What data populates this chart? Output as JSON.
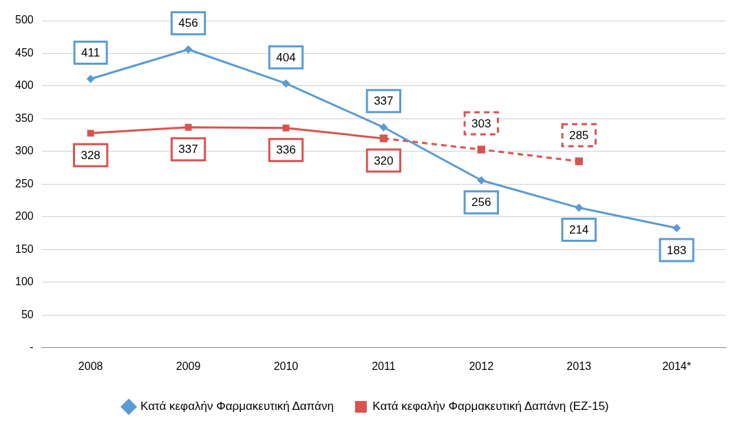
{
  "chart_data": {
    "type": "line",
    "categories": [
      "2008",
      "2009",
      "2010",
      "2011",
      "2012",
      "2013",
      "2014*"
    ],
    "series": [
      {
        "name": "Κατά κεφαλήν Φαρμακευτική Δαπάνη",
        "color": "#5b9bd5",
        "marker": "diamond",
        "values": [
          411,
          456,
          404,
          337,
          256,
          214,
          183
        ],
        "value_labels": [
          "411",
          "456",
          "404",
          "337",
          "256",
          "214",
          "183"
        ]
      },
      {
        "name": "Κατά κεφαλήν Φαρμακευτική Δαπάνη (ΕΖ-15)",
        "color": "#d9534f",
        "marker": "square",
        "values": [
          328,
          337,
          336,
          320,
          null,
          null,
          null
        ],
        "value_labels": [
          "328",
          "337",
          "336",
          "320",
          null,
          null,
          null
        ]
      },
      {
        "color": "#d9534f",
        "marker": "square",
        "line_style": "dashed",
        "values": [
          null,
          null,
          null,
          320,
          303,
          285,
          null
        ],
        "value_labels": [
          null,
          null,
          null,
          null,
          "303",
          "285",
          null
        ]
      }
    ],
    "ylim": [
      0,
      500
    ],
    "yticks": [
      {
        "value": 0,
        "label": "-"
      },
      50,
      100,
      150,
      200,
      250,
      300,
      350,
      400,
      450,
      500
    ],
    "grid": "y",
    "legend": "bottom"
  }
}
